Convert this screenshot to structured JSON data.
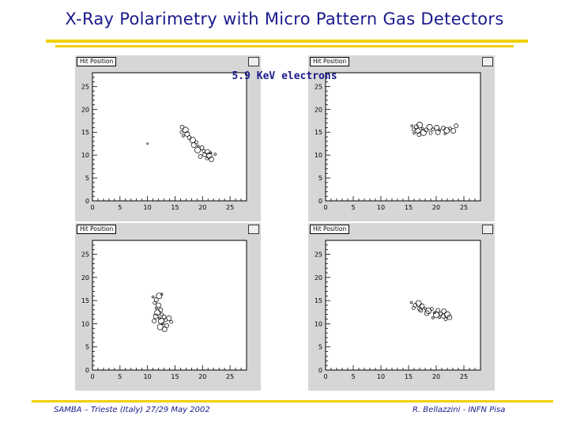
{
  "slide": {
    "title": "X-Ray Polarimetry with Micro Pattern Gas Detectors",
    "subtitle": "5.9 KeV electrons",
    "footer_left": "SAMBA – Trieste (Italy) 27/29 May 2002",
    "footer_right": "R. Bellazzini - INFN Pisa",
    "accent_color": "#f0d000",
    "title_color": "#1a1a8c"
  },
  "chart_data": [
    {
      "type": "scatter",
      "title": "Hit Position",
      "xticks": [
        0,
        5,
        10,
        15,
        20,
        25
      ],
      "yticks": [
        0,
        5,
        10,
        15,
        20,
        25
      ],
      "xlim": [
        0,
        28
      ],
      "ylim": [
        0,
        28
      ],
      "points": [
        {
          "x": 10.0,
          "y": 12.5
        },
        {
          "x": 16.3,
          "y": 16.1
        },
        {
          "x": 16.9,
          "y": 15.5
        },
        {
          "x": 16.2,
          "y": 15.0
        },
        {
          "x": 17.2,
          "y": 14.6
        },
        {
          "x": 16.5,
          "y": 14.2
        },
        {
          "x": 17.6,
          "y": 13.8
        },
        {
          "x": 18.2,
          "y": 13.3
        },
        {
          "x": 18.9,
          "y": 12.8
        },
        {
          "x": 18.4,
          "y": 12.2
        },
        {
          "x": 19.2,
          "y": 12.0
        },
        {
          "x": 19.9,
          "y": 11.6
        },
        {
          "x": 19.1,
          "y": 11.1
        },
        {
          "x": 20.2,
          "y": 10.9
        },
        {
          "x": 20.9,
          "y": 10.7
        },
        {
          "x": 21.5,
          "y": 10.5
        },
        {
          "x": 20.4,
          "y": 10.1
        },
        {
          "x": 21.2,
          "y": 9.9
        },
        {
          "x": 20.8,
          "y": 9.3
        },
        {
          "x": 21.6,
          "y": 9.1
        },
        {
          "x": 22.3,
          "y": 10.2
        },
        {
          "x": 19.6,
          "y": 9.7
        }
      ]
    },
    {
      "type": "scatter",
      "title": "Hit Position",
      "xticks": [
        0,
        5,
        10,
        15,
        20,
        25
      ],
      "yticks": [
        0,
        5,
        10,
        15,
        20,
        25
      ],
      "xlim": [
        0,
        28
      ],
      "ylim": [
        0,
        28
      ],
      "points": [
        {
          "x": 15.6,
          "y": 16.4
        },
        {
          "x": 16.4,
          "y": 16.2
        },
        {
          "x": 17.0,
          "y": 16.6
        },
        {
          "x": 15.9,
          "y": 15.6
        },
        {
          "x": 16.7,
          "y": 15.3
        },
        {
          "x": 17.5,
          "y": 15.8
        },
        {
          "x": 18.2,
          "y": 15.5
        },
        {
          "x": 18.8,
          "y": 16.1
        },
        {
          "x": 19.4,
          "y": 15.6
        },
        {
          "x": 20.1,
          "y": 16.0
        },
        {
          "x": 20.6,
          "y": 15.5
        },
        {
          "x": 21.3,
          "y": 15.9
        },
        {
          "x": 21.9,
          "y": 15.4
        },
        {
          "x": 22.5,
          "y": 15.8
        },
        {
          "x": 23.1,
          "y": 15.3
        },
        {
          "x": 16.0,
          "y": 14.8
        },
        {
          "x": 16.9,
          "y": 14.5
        },
        {
          "x": 17.7,
          "y": 14.9
        },
        {
          "x": 19.0,
          "y": 14.8
        },
        {
          "x": 20.3,
          "y": 15.0
        },
        {
          "x": 21.6,
          "y": 14.7
        },
        {
          "x": 23.6,
          "y": 16.4
        }
      ]
    },
    {
      "type": "scatter",
      "title": "Hit Position",
      "xticks": [
        0,
        5,
        10,
        15,
        20,
        25
      ],
      "yticks": [
        0,
        5,
        10,
        15,
        20,
        25
      ],
      "xlim": [
        0,
        28
      ],
      "ylim": [
        0,
        28
      ],
      "points": [
        {
          "x": 11.0,
          "y": 15.8
        },
        {
          "x": 11.6,
          "y": 15.2
        },
        {
          "x": 12.1,
          "y": 16.0
        },
        {
          "x": 11.3,
          "y": 14.5
        },
        {
          "x": 12.0,
          "y": 14.0
        },
        {
          "x": 11.6,
          "y": 13.4
        },
        {
          "x": 12.4,
          "y": 13.0
        },
        {
          "x": 11.8,
          "y": 12.4
        },
        {
          "x": 12.6,
          "y": 12.0
        },
        {
          "x": 11.5,
          "y": 11.6
        },
        {
          "x": 12.2,
          "y": 11.2
        },
        {
          "x": 13.0,
          "y": 11.5
        },
        {
          "x": 12.5,
          "y": 10.6
        },
        {
          "x": 13.3,
          "y": 10.8
        },
        {
          "x": 13.9,
          "y": 11.2
        },
        {
          "x": 12.8,
          "y": 10.0
        },
        {
          "x": 13.5,
          "y": 9.6
        },
        {
          "x": 12.3,
          "y": 9.3
        },
        {
          "x": 14.3,
          "y": 10.4
        },
        {
          "x": 13.1,
          "y": 8.8
        },
        {
          "x": 12.6,
          "y": 16.4
        },
        {
          "x": 11.2,
          "y": 10.6
        }
      ]
    },
    {
      "type": "scatter",
      "title": "Hit Position",
      "xticks": [
        0,
        5,
        10,
        15,
        20,
        25
      ],
      "yticks": [
        0,
        5,
        10,
        15,
        20,
        25
      ],
      "xlim": [
        0,
        28
      ],
      "ylim": [
        0,
        28
      ],
      "points": [
        {
          "x": 15.5,
          "y": 14.6
        },
        {
          "x": 16.2,
          "y": 14.0
        },
        {
          "x": 16.8,
          "y": 14.4
        },
        {
          "x": 15.9,
          "y": 13.4
        },
        {
          "x": 17.4,
          "y": 13.8
        },
        {
          "x": 18.0,
          "y": 13.3
        },
        {
          "x": 17.2,
          "y": 12.9
        },
        {
          "x": 18.6,
          "y": 12.8
        },
        {
          "x": 19.2,
          "y": 13.2
        },
        {
          "x": 18.3,
          "y": 12.3
        },
        {
          "x": 19.7,
          "y": 12.4
        },
        {
          "x": 20.3,
          "y": 12.9
        },
        {
          "x": 20.0,
          "y": 11.9
        },
        {
          "x": 20.8,
          "y": 12.2
        },
        {
          "x": 21.4,
          "y": 12.7
        },
        {
          "x": 20.6,
          "y": 11.4
        },
        {
          "x": 21.3,
          "y": 11.6
        },
        {
          "x": 22.0,
          "y": 12.0
        },
        {
          "x": 21.7,
          "y": 11.0
        },
        {
          "x": 22.4,
          "y": 11.4
        },
        {
          "x": 19.4,
          "y": 11.3
        },
        {
          "x": 17.0,
          "y": 13.2
        }
      ]
    }
  ]
}
